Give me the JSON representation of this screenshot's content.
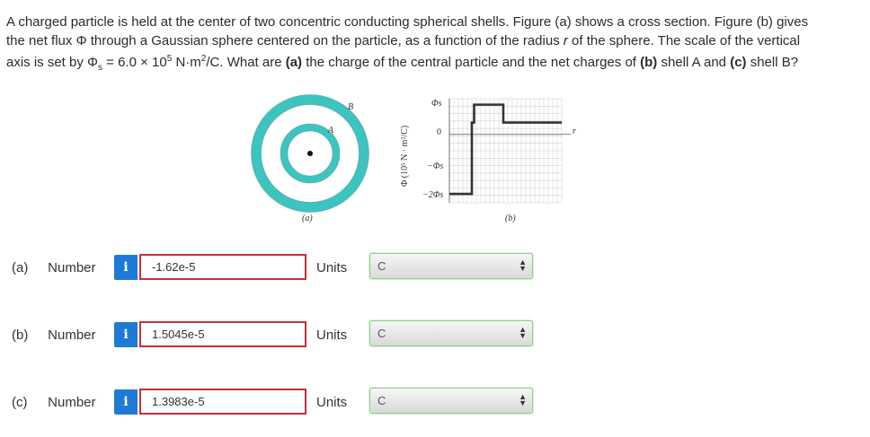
{
  "question": {
    "line1": "A charged particle is held at the center of two concentric conducting spherical shells. Figure (a) shows a cross section. Figure (b) gives",
    "line2_pre": "the net flux ",
    "phi": "Φ",
    "line2_post": " through a Gaussian sphere centered on the particle, as a function of the radius ",
    "r": "r",
    "line2_end": " of the sphere. The scale of the vertical",
    "line3_pre": "axis is set by Φ",
    "sub_s": "s",
    "line3_eq": " = 6.0 × 10",
    "exp5": "5",
    "line3_unit": " N·m",
    "exp2": "2",
    "line3_unit2": "/C. What are ",
    "a_label": "(a)",
    "a_text": " the charge of the central particle and the net charges of ",
    "b_label": "(b)",
    "b_text": " shell A and ",
    "c_label": "(c)",
    "c_text": " shell B?"
  },
  "figure": {
    "label_a": "(a)",
    "label_b": "(b)",
    "shell_A": "A",
    "shell_B": "B",
    "ylabel": "Φ (10⁵ N · m²/C)",
    "tick_top": "Φs",
    "tick_zero": "0",
    "tick_neg": "−Φs",
    "tick_neg2": "−2Φs",
    "xaxis": "r",
    "ring_color": "#3cc4c0"
  },
  "chart_data": {
    "type": "line",
    "title": "",
    "xlabel": "r",
    "ylabel": "Φ (10⁵ N · m²/C)",
    "yticks": [
      "Φs",
      "0",
      "−Φs",
      "−2Φs"
    ],
    "x": [
      0,
      1,
      1,
      1.1,
      1.1,
      2.4,
      2.4,
      3.6,
      3.6,
      5
    ],
    "y": [
      -2,
      -2,
      0.4,
      0.4,
      1,
      1,
      0.4,
      0.4,
      0.4,
      0.4
    ]
  },
  "answers": [
    {
      "part": "(a)",
      "label": "Number",
      "info": "i",
      "value": "-1.62e-5",
      "units_label": "Units",
      "units_value": "C"
    },
    {
      "part": "(b)",
      "label": "Number",
      "info": "i",
      "value": "1.5045e-5",
      "units_label": "Units",
      "units_value": "C"
    },
    {
      "part": "(c)",
      "label": "Number",
      "info": "i",
      "value": "1.3983e-5",
      "units_label": "Units",
      "units_value": "C"
    }
  ]
}
